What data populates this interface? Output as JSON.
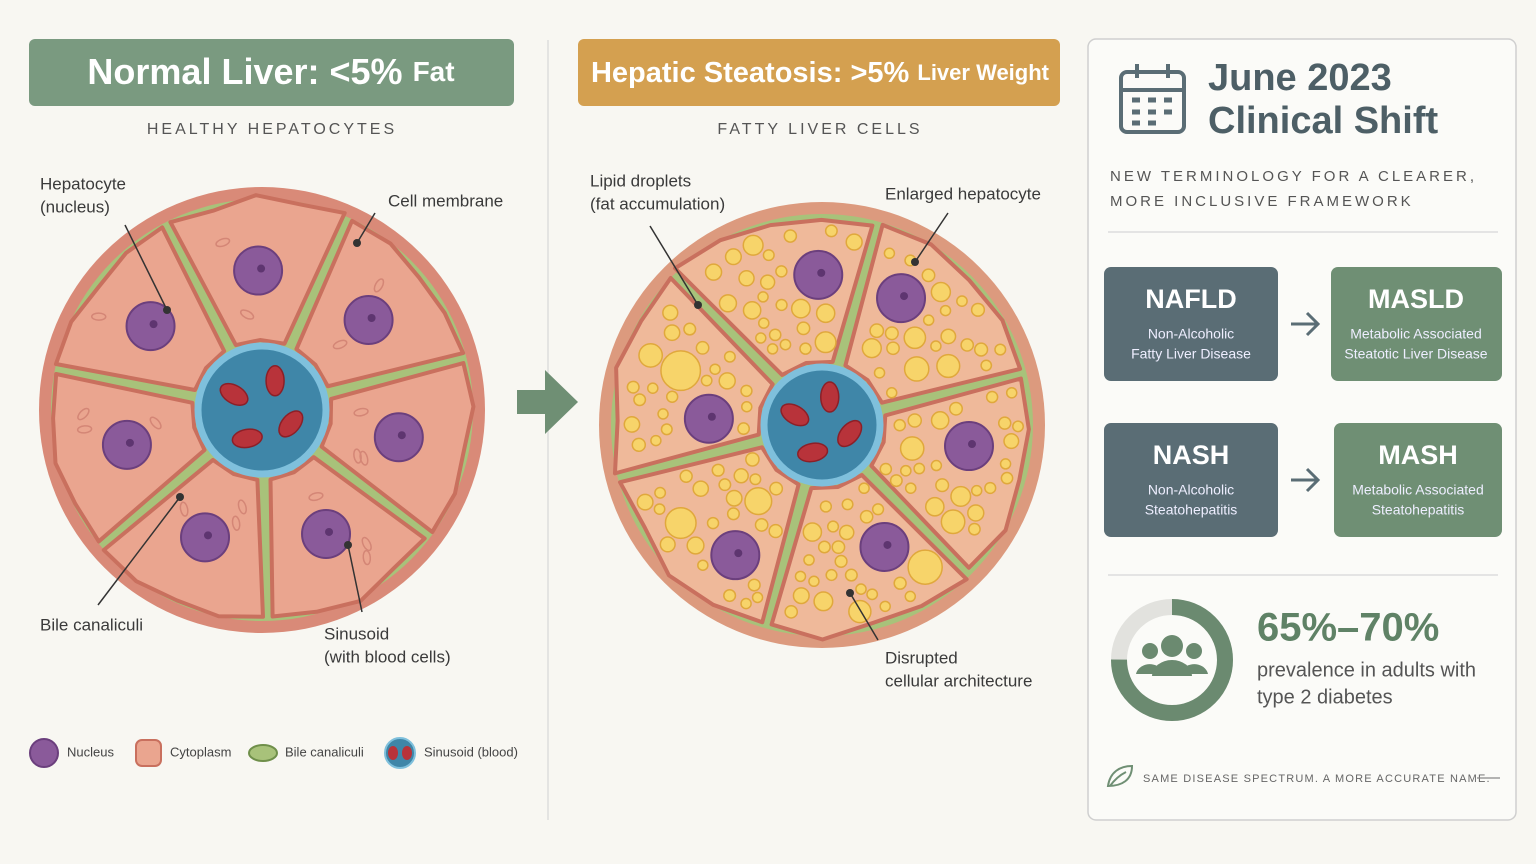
{
  "normal": {
    "title": "Normal Liver: <5%",
    "title_suffix": "Fat",
    "subtitle": "HEALTHY HEPATOCYTES",
    "callouts": [
      [
        "Hepatocyte",
        "(nucleus)"
      ],
      [
        "Cell membrane"
      ],
      [
        "Bile canaliculi"
      ],
      [
        "Sinusoid",
        "(with blood cells)"
      ]
    ],
    "legend": [
      "Nucleus",
      "Cytoplasm",
      "Bile canaliculi",
      "Sinusoid (blood)"
    ]
  },
  "steatosis": {
    "title": "Hepatic Steatosis: >5%",
    "title_suffix": "Liver Weight",
    "subtitle": "FATTY LIVER CELLS",
    "callouts": [
      [
        "Lipid droplets",
        "(fat accumulation)"
      ],
      [
        "Enlarged hepatocyte"
      ],
      [
        "Disrupted",
        "cellular architecture"
      ]
    ]
  },
  "panel": {
    "title": [
      "June 2023",
      "Clinical Shift"
    ],
    "subtitle": [
      "NEW TERMINOLOGY FOR A CLEARER,",
      "MORE INCLUSIVE FRAMEWORK"
    ],
    "terms": [
      {
        "old": {
          "abbr": "NAFLD",
          "name": [
            "Non-Alcoholic",
            "Fatty Liver Disease"
          ]
        },
        "new": {
          "abbr": "MASLD",
          "name": [
            "Metabolic Associated",
            "Steatotic Liver Disease"
          ]
        }
      },
      {
        "old": {
          "abbr": "NASH",
          "name": [
            "Non-Alcoholic",
            "Steatohepatitis"
          ]
        },
        "new": {
          "abbr": "MASH",
          "name": [
            "Metabolic Associated",
            "Steatohepatitis"
          ]
        }
      }
    ],
    "stat": {
      "value": "65%–70%",
      "caption": [
        "prevalence in adults with",
        "type 2 diabetes"
      ]
    },
    "footer": "SAME DISEASE SPECTRUM. A MORE ACCURATE NAME."
  }
}
